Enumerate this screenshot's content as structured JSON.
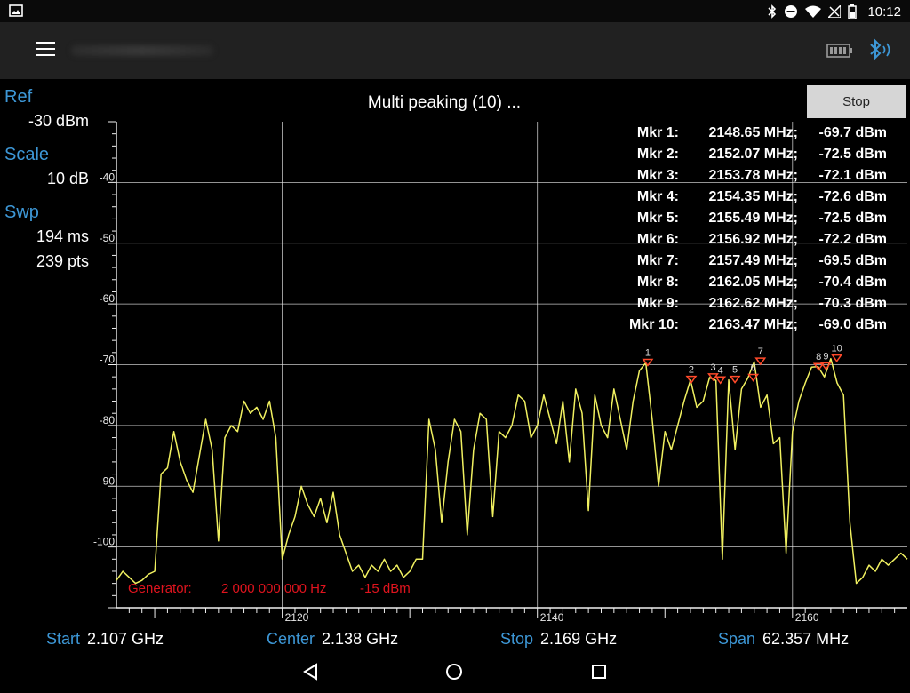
{
  "status_bar": {
    "time": "10:12"
  },
  "sidebar": {
    "ref_label": "Ref",
    "ref_value": "-30 dBm",
    "scale_label": "Scale",
    "scale_value": "10  dB",
    "swp_label": "Swp",
    "swp_time": "194 ms",
    "swp_points": "239 pts"
  },
  "header": {
    "status_text": "Multi peaking (10) ...",
    "stop_label": "Stop"
  },
  "footer": {
    "start_label": "Start",
    "start_value": "2.107 GHz",
    "center_label": "Center",
    "center_value": "2.138 GHz",
    "stop_label": "Stop",
    "stop_value": "2.169 GHz",
    "span_label": "Span",
    "span_value": "62.357 MHz"
  },
  "colors": {
    "accent": "#3d97d6",
    "trace": "#f0f060",
    "marker": "#ff4a2a",
    "generator": "#e0141e",
    "grid": "#e8e8e8"
  },
  "chart_data": {
    "type": "line",
    "x_ticks": [
      "2120",
      "2140",
      "2160"
    ],
    "y_ticks": [
      "-40",
      "-50",
      "-60",
      "-70",
      "-80",
      "-90",
      "-100"
    ],
    "xlim": [
      2107,
      2169
    ],
    "ylim": [
      -110,
      -30
    ],
    "grid": true,
    "generator_label": "Generator:",
    "generator_freq": "2 000 000 000 Hz",
    "generator_power": "-15 dBm",
    "markers": [
      {
        "label": "Mkr 1:",
        "id": "1",
        "freq": 2148.65,
        "freq_text": "2148.65 MHz;",
        "level": -69.7,
        "level_text": "-69.7 dBm"
      },
      {
        "label": "Mkr 2:",
        "id": "2",
        "freq": 2152.07,
        "freq_text": "2152.07 MHz;",
        "level": -72.5,
        "level_text": "-72.5 dBm"
      },
      {
        "label": "Mkr 3:",
        "id": "3",
        "freq": 2153.78,
        "freq_text": "2153.78 MHz;",
        "level": -72.1,
        "level_text": "-72.1 dBm"
      },
      {
        "label": "Mkr 4:",
        "id": "4",
        "freq": 2154.35,
        "freq_text": "2154.35 MHz;",
        "level": -72.6,
        "level_text": "-72.6 dBm"
      },
      {
        "label": "Mkr 5:",
        "id": "5",
        "freq": 2155.49,
        "freq_text": "2155.49 MHz;",
        "level": -72.5,
        "level_text": "-72.5 dBm"
      },
      {
        "label": "Mkr 6:",
        "id": "6",
        "freq": 2156.92,
        "freq_text": "2156.92 MHz;",
        "level": -72.2,
        "level_text": "-72.2 dBm"
      },
      {
        "label": "Mkr 7:",
        "id": "7",
        "freq": 2157.49,
        "freq_text": "2157.49 MHz;",
        "level": -69.5,
        "level_text": "-69.5 dBm"
      },
      {
        "label": "Mkr 8:",
        "id": "8",
        "freq": 2162.05,
        "freq_text": "2162.05 MHz;",
        "level": -70.4,
        "level_text": "-70.4 dBm"
      },
      {
        "label": "Mkr 9:",
        "id": "9",
        "freq": 2162.62,
        "freq_text": "2162.62 MHz;",
        "level": -70.3,
        "level_text": "-70.3 dBm"
      },
      {
        "label": "Mkr 10:",
        "id": "10",
        "freq": 2163.47,
        "freq_text": "2163.47 MHz;",
        "level": -69.0,
        "level_text": "-69.0 dBm"
      }
    ],
    "series": [
      {
        "x": [
          2107.0,
          2107.5,
          2108.0,
          2108.5,
          2109.0,
          2109.5,
          2110.0,
          2110.5,
          2111.0,
          2111.5,
          2112.0,
          2112.5,
          2113.0,
          2113.5,
          2114.0,
          2114.5,
          2115.0,
          2115.5,
          2116.0,
          2116.5,
          2117.0,
          2117.5,
          2118.0,
          2118.5,
          2119.0,
          2119.5,
          2120.0,
          2120.5,
          2121.0,
          2121.5,
          2122.0,
          2122.5,
          2123.0,
          2123.5,
          2124.0,
          2124.5,
          2125.0,
          2125.5,
          2126.0,
          2126.5,
          2127.0,
          2127.5,
          2128.0,
          2128.5,
          2129.0,
          2129.5,
          2130.0,
          2130.5,
          2131.0,
          2131.5,
          2132.0,
          2132.5,
          2133.0,
          2133.5,
          2134.0,
          2134.5,
          2135.0,
          2135.5,
          2136.0,
          2136.5,
          2137.0,
          2137.5,
          2138.0,
          2138.5,
          2139.0,
          2139.5,
          2140.0,
          2140.5,
          2141.0,
          2141.5,
          2142.0,
          2142.5,
          2143.0,
          2143.5,
          2144.0,
          2144.5,
          2145.0,
          2145.5,
          2146.0,
          2146.5,
          2147.0,
          2147.5,
          2148.0,
          2148.5,
          2149.0,
          2149.5,
          2150.0,
          2150.5,
          2151.0,
          2151.5,
          2152.0,
          2152.5,
          2153.0,
          2153.5,
          2154.0,
          2154.5,
          2155.0,
          2155.5,
          2156.0,
          2156.5,
          2157.0,
          2157.5,
          2158.0,
          2158.5,
          2159.0,
          2159.5,
          2160.0,
          2160.5,
          2161.0,
          2161.5,
          2162.0,
          2162.5,
          2163.0,
          2163.5,
          2164.0,
          2164.5,
          2165.0,
          2165.5,
          2166.0,
          2166.5,
          2167.0,
          2167.5,
          2168.0,
          2168.5,
          2169.0
        ],
        "y": [
          -105.5,
          -104.0,
          -105.0,
          -106.0,
          -105.5,
          -104.5,
          -104.0,
          -88.0,
          -87.0,
          -81.0,
          -86.0,
          -89.0,
          -91.0,
          -85.0,
          -79.0,
          -84.0,
          -99.0,
          -82.0,
          -80.0,
          -81.0,
          -76.0,
          -78.0,
          -77.0,
          -79.0,
          -76.0,
          -82.0,
          -102.0,
          -98.0,
          -95.0,
          -90.0,
          -93.0,
          -95.0,
          -92.0,
          -96.0,
          -91.0,
          -98.0,
          -101.0,
          -104.0,
          -103.0,
          -105.0,
          -103.0,
          -104.0,
          -102.0,
          -104.0,
          -103.0,
          -105.0,
          -104.0,
          -102.0,
          -102.0,
          -79.0,
          -84.0,
          -96.0,
          -86.0,
          -79.0,
          -81.0,
          -98.0,
          -84.0,
          -78.0,
          -79.0,
          -95.0,
          -81.0,
          -82.0,
          -80.0,
          -75.0,
          -76.0,
          -82.0,
          -80.0,
          -75.0,
          -79.0,
          -83.0,
          -76.0,
          -86.0,
          -74.0,
          -78.0,
          -94.0,
          -75.0,
          -80.0,
          -82.0,
          -74.0,
          -79.0,
          -84.0,
          -76.0,
          -71.0,
          -69.7,
          -79.0,
          -90.0,
          -81.0,
          -84.0,
          -80.0,
          -76.0,
          -72.5,
          -77.0,
          -76.0,
          -72.1,
          -72.6,
          -102.0,
          -72.5,
          -84.0,
          -74.0,
          -72.2,
          -69.5,
          -77.0,
          -75.0,
          -83.0,
          -82.0,
          -101.0,
          -81.0,
          -76.0,
          -73.0,
          -70.4,
          -70.3,
          -72.0,
          -69.0,
          -73.0,
          -75.0,
          -96.0,
          -106.0,
          -105.0,
          -103.0,
          -104.0,
          -102.0,
          -103.0,
          -102.0,
          -101.0,
          -102.0
        ]
      }
    ]
  }
}
